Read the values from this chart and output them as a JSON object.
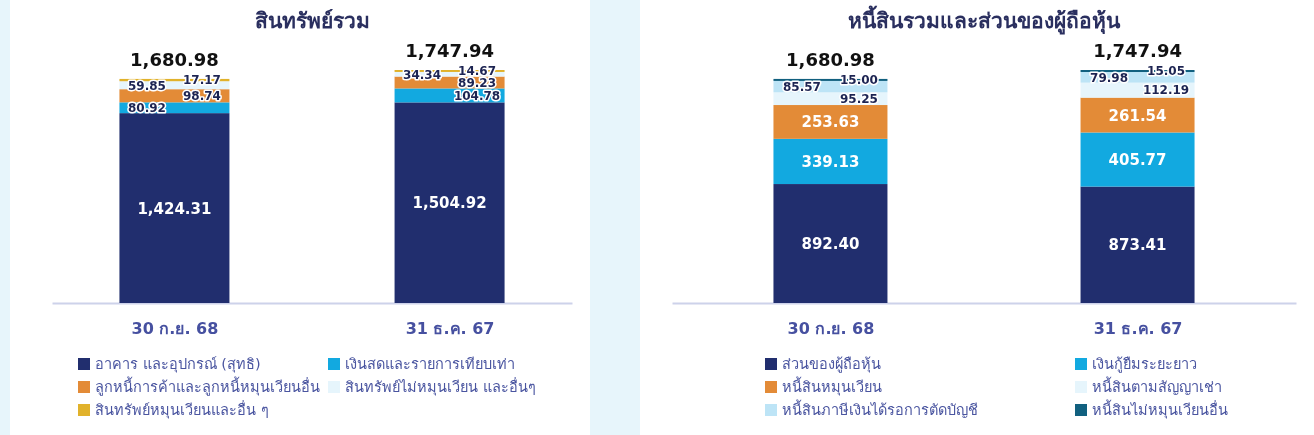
{
  "chart_data": [
    {
      "type": "bar",
      "title": "สินทรัพย์รวม",
      "categories": [
        "30 ก.ย. 68",
        "31 ธ.ค. 67"
      ],
      "stacked": true,
      "legend": "bottom",
      "tick_labels": "x",
      "totals": [
        "1,680.98",
        "1,747.94"
      ],
      "series": [
        {
          "name": "อาคาร และอุปกรณ์ (สุทธิ)",
          "color": "#212e6e",
          "values": [
            1424.31,
            1504.92
          ],
          "value_labels": [
            "1,424.31",
            "1,504.92"
          ]
        },
        {
          "name": "เงินสดและรายการเทียบเท่า",
          "color": "#12a9e0",
          "values": [
            80.92,
            104.78
          ],
          "value_labels": [
            "80.92",
            "104.78"
          ]
        },
        {
          "name": "ลูกหนี้การค้าและลูกหนี้หมุนเวียนอื่น",
          "color": "#e38b37",
          "values": [
            98.74,
            89.23
          ],
          "value_labels": [
            "98.74",
            "89.23"
          ]
        },
        {
          "name": "สินทรัพย์ไม่หมุนเวียน และอื่นๆ",
          "color": "#e6f5fc",
          "values": [
            59.85,
            34.34
          ],
          "value_labels": [
            "59.85",
            "34.34"
          ]
        },
        {
          "name": "สินทรัพย์หมุนเวียนและอื่น ๆ",
          "color": "#e1b22b",
          "values": [
            17.17,
            14.67
          ],
          "value_labels": [
            "17.17",
            "14.67"
          ]
        }
      ]
    },
    {
      "type": "bar",
      "title": "หนี้สินรวมและส่วนของผู้ถือหุ้น",
      "categories": [
        "30 ก.ย. 68",
        "31 ธ.ค. 67"
      ],
      "stacked": true,
      "legend": "bottom",
      "tick_labels": "x",
      "totals": [
        "1,680.98",
        "1,747.94"
      ],
      "series": [
        {
          "name": "ส่วนของผู้ถือหุ้น",
          "color": "#212e6e",
          "values": [
            892.4,
            873.41
          ],
          "value_labels": [
            "892.40",
            "873.41"
          ]
        },
        {
          "name": "เงินกู้ยืมระยะยาว",
          "color": "#12a9e0",
          "values": [
            339.13,
            405.77
          ],
          "value_labels": [
            "339.13",
            "405.77"
          ]
        },
        {
          "name": "หนี้สินหมุนเวียน",
          "color": "#e38b37",
          "values": [
            253.63,
            261.54
          ],
          "value_labels": [
            "253.63",
            "261.54"
          ]
        },
        {
          "name": "หนี้สินตามสัญญาเช่า",
          "color": "#e6f5fc",
          "values": [
            95.25,
            112.19
          ],
          "value_labels": [
            "95.25",
            "112.19"
          ]
        },
        {
          "name": "หนี้สินภาษีเงินได้รอการตัดบัญชี",
          "color": "#bde4f6",
          "values": [
            85.57,
            79.98
          ],
          "value_labels": [
            "85.57",
            "79.98"
          ]
        },
        {
          "name": "หนี้สินไม่หมุนเวียนอื่น",
          "color": "#11607f",
          "values": [
            15.0,
            15.05
          ],
          "value_labels": [
            "15.00",
            "15.05"
          ]
        }
      ]
    }
  ]
}
